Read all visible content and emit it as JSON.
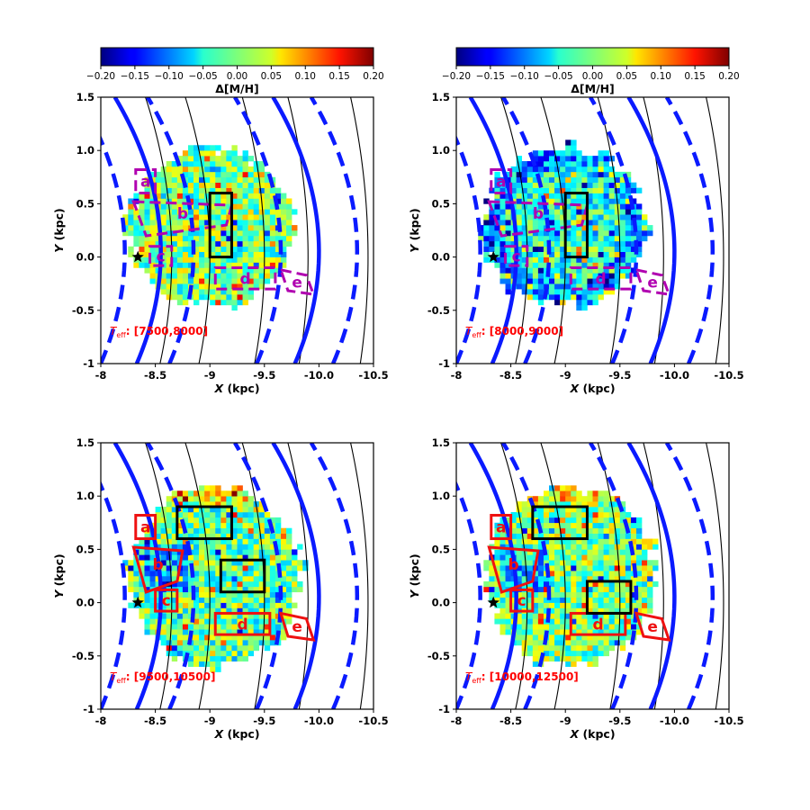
{
  "colorbar": {
    "label": "Δ[M/H]",
    "ticks": [
      "−0.20",
      "−0.15",
      "−0.10",
      "−0.05",
      "0.00",
      "0.05",
      "0.10",
      "0.15",
      "0.20"
    ],
    "range": [
      -0.2,
      0.2
    ],
    "colormap": "jet"
  },
  "chart_data": [
    {
      "type": "heatmap",
      "panel": "top-left",
      "teff_range": "[7500,8000]",
      "xlabel": "X (kpc)",
      "ylabel": "Y (kpc)",
      "xlim": [
        -8,
        -10.5
      ],
      "ylim": [
        -1,
        1.5
      ],
      "xticks": [
        "-8",
        "-8.5",
        "-9",
        "-9.5",
        "-10.0",
        "-10.5"
      ],
      "yticks": [
        "-1",
        "-0.5",
        "0.0",
        "0.5",
        "1.0",
        "1.5"
      ],
      "sun": {
        "x": -8.34,
        "y": 0.0
      },
      "region_style": "dashed",
      "region_color": "#b000b0",
      "regions": [
        {
          "name": "a",
          "x": [
            -8.32,
            -8.5
          ],
          "y": [
            0.6,
            0.82
          ]
        },
        {
          "name": "b",
          "x": [
            -8.3,
            -9.2
          ],
          "y": [
            0.3,
            0.52
          ]
        },
        {
          "name": "c",
          "x": [
            -8.45,
            -8.65
          ],
          "y": [
            -0.08,
            0.1
          ]
        },
        {
          "name": "d",
          "x": [
            -9.05,
            -9.6
          ],
          "y": [
            -0.3,
            -0.1
          ]
        },
        {
          "name": "e",
          "x": [
            -9.65,
            -9.95
          ],
          "y": [
            -0.35,
            -0.12
          ]
        }
      ],
      "box": {
        "x": [
          -9.0,
          -9.2
        ],
        "y": [
          0.0,
          0.6
        ]
      },
      "field_mean": 0.0
    },
    {
      "type": "heatmap",
      "panel": "top-right",
      "teff_range": "[8000,9000]",
      "xlabel": "X (kpc)",
      "ylabel": "Y (kpc)",
      "xlim": [
        -8,
        -10.5
      ],
      "ylim": [
        -1,
        1.5
      ],
      "xticks": [
        "-8",
        "-8.5",
        "-9",
        "-9.5",
        "-10.0",
        "-10.5"
      ],
      "yticks": [
        "-1",
        "-0.5",
        "0.0",
        "0.5",
        "1.0",
        "1.5"
      ],
      "sun": {
        "x": -8.34,
        "y": 0.0
      },
      "region_style": "dashed",
      "region_color": "#b000b0",
      "regions": [
        {
          "name": "a",
          "x": [
            -8.32,
            -8.5
          ],
          "y": [
            0.6,
            0.82
          ]
        },
        {
          "name": "b",
          "x": [
            -8.3,
            -9.2
          ],
          "y": [
            0.3,
            0.52
          ]
        },
        {
          "name": "c",
          "x": [
            -8.45,
            -8.65
          ],
          "y": [
            -0.08,
            0.1
          ]
        },
        {
          "name": "d",
          "x": [
            -9.05,
            -9.6
          ],
          "y": [
            -0.3,
            -0.1
          ]
        },
        {
          "name": "e",
          "x": [
            -9.65,
            -9.95
          ],
          "y": [
            -0.35,
            -0.12
          ]
        }
      ],
      "box": {
        "x": [
          -9.0,
          -9.2
        ],
        "y": [
          0.0,
          0.6
        ]
      },
      "field_mean": -0.03
    },
    {
      "type": "heatmap",
      "panel": "bottom-left",
      "teff_range": "[9500,10500]",
      "xlabel": "X (kpc)",
      "ylabel": "Y (kpc)",
      "xlim": [
        -8,
        -10.5
      ],
      "ylim": [
        -1,
        1.5
      ],
      "xticks": [
        "-8",
        "-8.5",
        "-9",
        "-9.5",
        "-10.0",
        "-10.5"
      ],
      "yticks": [
        "-1",
        "-0.5",
        "0.0",
        "0.5",
        "1.0",
        "1.5"
      ],
      "sun": {
        "x": -8.34,
        "y": 0.0
      },
      "region_style": "solid",
      "region_color": "#ee1111",
      "regions": [
        {
          "name": "a",
          "x": [
            -8.32,
            -8.5
          ],
          "y": [
            0.6,
            0.82
          ]
        },
        {
          "name": "b",
          "x": [
            -8.3,
            -8.75
          ],
          "y": [
            0.2,
            0.52
          ]
        },
        {
          "name": "c",
          "x": [
            -8.5,
            -8.7
          ],
          "y": [
            -0.08,
            0.12
          ]
        },
        {
          "name": "d",
          "x": [
            -9.05,
            -9.55
          ],
          "y": [
            -0.3,
            -0.1
          ]
        },
        {
          "name": "e",
          "x": [
            -9.65,
            -9.95
          ],
          "y": [
            -0.35,
            -0.1
          ]
        }
      ],
      "box": {
        "x": [
          -8.7,
          -9.2
        ],
        "y": [
          0.6,
          0.9
        ]
      },
      "box2": {
        "x": [
          -9.1,
          -9.5
        ],
        "y": [
          0.1,
          0.4
        ]
      },
      "field_mean": -0.01
    },
    {
      "type": "heatmap",
      "panel": "bottom-right",
      "teff_range": "[10000,12500]",
      "xlabel": "X (kpc)",
      "ylabel": "Y (kpc)",
      "xlim": [
        -8,
        -10.5
      ],
      "ylim": [
        -1,
        1.5
      ],
      "xticks": [
        "-8",
        "-8.5",
        "-9",
        "-9.5",
        "-10.0",
        "-10.5"
      ],
      "yticks": [
        "-1",
        "-0.5",
        "0.0",
        "0.5",
        "1.0",
        "1.5"
      ],
      "sun": {
        "x": -8.34,
        "y": 0.0
      },
      "region_style": "solid",
      "region_color": "#ee1111",
      "regions": [
        {
          "name": "a",
          "x": [
            -8.32,
            -8.5
          ],
          "y": [
            0.6,
            0.82
          ]
        },
        {
          "name": "b",
          "x": [
            -8.3,
            -8.75
          ],
          "y": [
            0.2,
            0.52
          ]
        },
        {
          "name": "c",
          "x": [
            -8.5,
            -8.7
          ],
          "y": [
            -0.08,
            0.12
          ]
        },
        {
          "name": "d",
          "x": [
            -9.05,
            -9.55
          ],
          "y": [
            -0.3,
            -0.1
          ]
        },
        {
          "name": "e",
          "x": [
            -9.65,
            -9.95
          ],
          "y": [
            -0.35,
            -0.1
          ]
        }
      ],
      "box": {
        "x": [
          -8.7,
          -9.2
        ],
        "y": [
          0.6,
          0.9
        ]
      },
      "box2": {
        "x": [
          -9.2,
          -9.6
        ],
        "y": [
          -0.1,
          0.2
        ]
      },
      "field_mean": 0.0
    }
  ]
}
